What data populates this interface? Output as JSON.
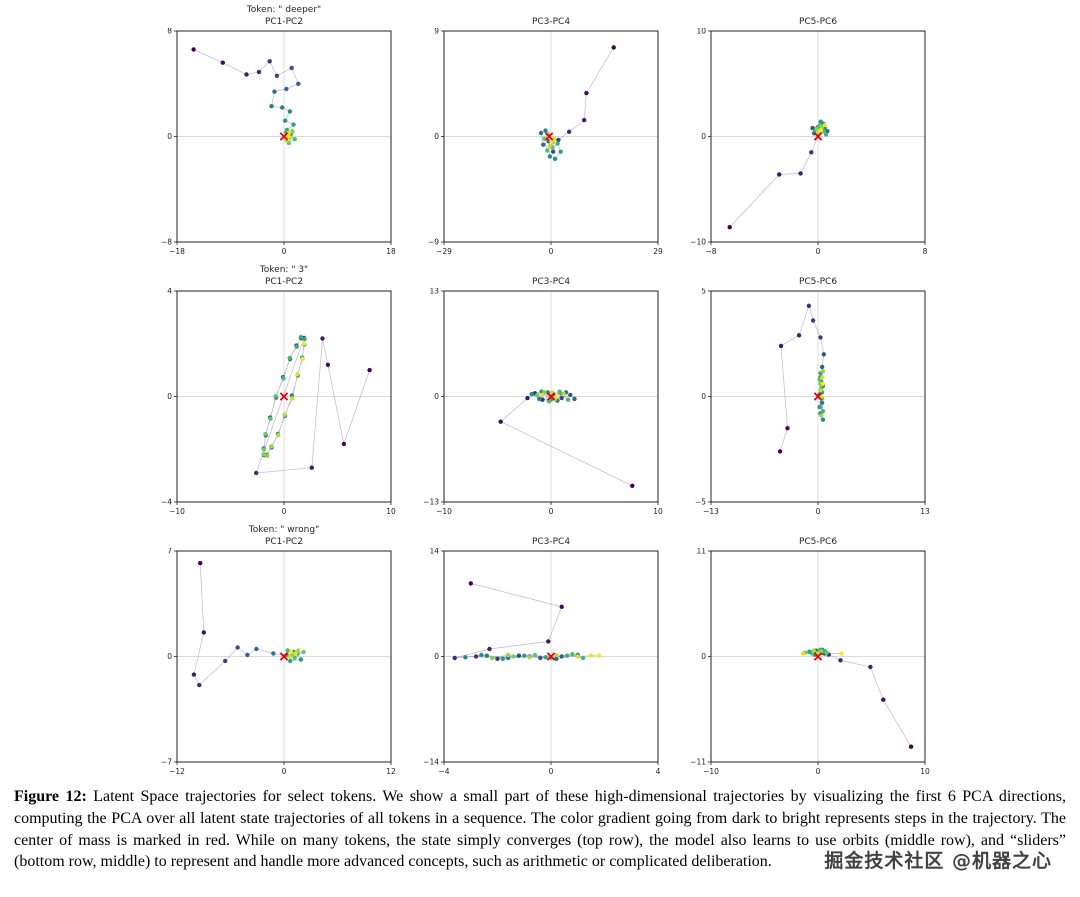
{
  "figure": {
    "caption_label": "Figure 12:",
    "caption_text": " Latent Space trajectories for select tokens.  We show a small part of these high-dimensional trajectories by visualizing the first 6 PCA directions, computing the PCA over all latent state trajectories of all tokens in a sequence.  The color gradient going from dark to bright represents steps in the trajectory.  The center of mass is marked in red.  While on many tokens, the state simply converges (top row), the model also learns to use orbits (middle row), and “sliders” (bottom row, middle) to represent and handle more advanced concepts, such as arithmetic or complicated deliberation."
  },
  "watermark": {
    "text": "掘金技术社区 @机器之心"
  },
  "colors": {
    "center_of_mass": "#e8000b",
    "trajectory_line": "#8a8ac0",
    "crosshair": "#d9d9d9",
    "frame": "#222222",
    "gradient": "viridis"
  },
  "chart_data": [
    {
      "type": "scatter",
      "token": "Token: \" deeper\"",
      "pc_label": "PC1-PC2",
      "xlim": [
        -18,
        18
      ],
      "ylim": [
        -8,
        8
      ],
      "xticks": [
        -18,
        0,
        18
      ],
      "yticks": [
        -8,
        0,
        8
      ],
      "center_of_mass": [
        0,
        0
      ],
      "points": [
        [
          -15.2,
          6.6
        ],
        [
          -10.3,
          5.6
        ],
        [
          -6.3,
          4.7
        ],
        [
          -4.2,
          4.9
        ],
        [
          -2.4,
          5.7
        ],
        [
          -1.2,
          4.6
        ],
        [
          1.3,
          5.2
        ],
        [
          2.4,
          4.0
        ],
        [
          0.4,
          3.6
        ],
        [
          -1.6,
          3.4
        ],
        [
          -2.1,
          2.3
        ],
        [
          -0.3,
          2.2
        ],
        [
          1.0,
          1.9
        ],
        [
          0.2,
          1.2
        ],
        [
          1.6,
          0.9
        ],
        [
          0.5,
          0.5
        ],
        [
          1.2,
          0.2
        ],
        [
          0.3,
          0.3
        ],
        [
          1.8,
          -0.2
        ],
        [
          0.8,
          -0.5
        ],
        [
          1.4,
          0.4
        ],
        [
          0.6,
          0.1
        ],
        [
          1.0,
          -0.1
        ],
        [
          0.4,
          -0.3
        ],
        [
          0.9,
          0.3
        ],
        [
          0.7,
          0.0
        ]
      ]
    },
    {
      "type": "scatter",
      "token": "",
      "pc_label": "PC3-PC4",
      "xlim": [
        -29,
        29
      ],
      "ylim": [
        -9,
        9
      ],
      "xticks": [
        -29,
        0,
        29
      ],
      "yticks": [
        -9,
        0,
        9
      ],
      "center_of_mass": [
        -0.5,
        0.0
      ],
      "points": [
        [
          17.0,
          7.6
        ],
        [
          9.6,
          3.7
        ],
        [
          9.0,
          1.4
        ],
        [
          4.9,
          0.4
        ],
        [
          2.0,
          -0.3
        ],
        [
          0.6,
          -1.3
        ],
        [
          -0.6,
          -0.4
        ],
        [
          -2.1,
          -0.7
        ],
        [
          -2.7,
          0.3
        ],
        [
          -1.5,
          0.5
        ],
        [
          -0.3,
          -1.7
        ],
        [
          1.1,
          -1.9
        ],
        [
          2.6,
          -1.3
        ],
        [
          1.8,
          -0.6
        ],
        [
          0.3,
          -0.9
        ],
        [
          -1.0,
          -1.2
        ],
        [
          -1.8,
          -0.2
        ],
        [
          -0.7,
          0.2
        ],
        [
          0.5,
          -0.5
        ],
        [
          -0.2,
          -0.8
        ],
        [
          0.9,
          -0.2
        ],
        [
          0.1,
          -0.4
        ]
      ]
    },
    {
      "type": "scatter",
      "token": "",
      "pc_label": "PC5-PC6",
      "xlim": [
        -8,
        8
      ],
      "ylim": [
        -10,
        10
      ],
      "xticks": [
        -8,
        0,
        8
      ],
      "yticks": [
        -10,
        0,
        10
      ],
      "center_of_mass": [
        0,
        0
      ],
      "points": [
        [
          -6.6,
          -8.6
        ],
        [
          -2.9,
          -3.6
        ],
        [
          -1.3,
          -3.5
        ],
        [
          -0.5,
          -1.5
        ],
        [
          0.1,
          0.3
        ],
        [
          -0.4,
          0.8
        ],
        [
          0.4,
          1.2
        ],
        [
          0.7,
          0.5
        ],
        [
          0.0,
          0.9
        ],
        [
          -0.3,
          0.3
        ],
        [
          0.5,
          0.8
        ],
        [
          0.2,
          1.4
        ],
        [
          -0.2,
          0.6
        ],
        [
          0.6,
          0.2
        ],
        [
          0.1,
          1.0
        ],
        [
          0.4,
          0.5
        ],
        [
          -0.1,
          0.7
        ],
        [
          0.3,
          0.9
        ],
        [
          0.0,
          0.4
        ],
        [
          0.5,
          1.1
        ],
        [
          0.2,
          0.6
        ]
      ]
    },
    {
      "type": "scatter",
      "token": "Token: \" 3\"",
      "pc_label": "PC1-PC2",
      "xlim": [
        -10,
        10
      ],
      "ylim": [
        -4,
        4
      ],
      "xticks": [
        -10,
        0,
        10
      ],
      "yticks": [
        -4,
        0,
        4
      ],
      "center_of_mass": [
        0,
        0
      ],
      "points": [
        [
          8.0,
          1.0
        ],
        [
          5.6,
          -1.8
        ],
        [
          4.1,
          1.2
        ],
        [
          3.6,
          2.2
        ],
        [
          2.6,
          -2.7
        ],
        [
          -2.6,
          -2.9
        ],
        [
          1.87,
          2.22
        ],
        [
          1.61,
          2.21
        ],
        [
          1.16,
          1.93
        ],
        [
          0.57,
          1.42
        ],
        [
          -0.09,
          0.73
        ],
        [
          -0.74,
          -0.04
        ],
        [
          -1.3,
          -0.8
        ],
        [
          -1.7,
          -1.47
        ],
        [
          -1.9,
          -1.97
        ],
        [
          -1.87,
          -2.22
        ],
        [
          -1.61,
          -2.21
        ],
        [
          -1.16,
          -1.93
        ],
        [
          -0.57,
          -1.42
        ],
        [
          0.09,
          -0.73
        ],
        [
          0.74,
          0.04
        ],
        [
          1.3,
          0.8
        ],
        [
          1.7,
          1.47
        ],
        [
          1.9,
          1.97
        ],
        [
          1.92,
          2.18
        ],
        [
          1.57,
          2.25
        ],
        [
          1.2,
          1.89
        ],
        [
          0.53,
          1.46
        ],
        [
          -0.05,
          0.69
        ],
        [
          -0.78,
          0.0
        ],
        [
          -1.26,
          -0.84
        ],
        [
          -1.74,
          -1.43
        ],
        [
          -1.86,
          -2.01
        ],
        [
          -1.91,
          -2.18
        ],
        [
          -1.57,
          -2.25
        ],
        [
          -1.2,
          -1.89
        ],
        [
          -0.53,
          -1.46
        ],
        [
          0.05,
          -0.69
        ],
        [
          0.78,
          -0.08
        ],
        [
          1.26,
          0.84
        ],
        [
          1.74,
          1.43
        ],
        [
          1.86,
          2.01
        ]
      ]
    },
    {
      "type": "scatter",
      "token": "",
      "pc_label": "PC3-PC4",
      "xlim": [
        -10,
        10
      ],
      "ylim": [
        -13,
        13
      ],
      "xticks": [
        -10,
        0,
        10
      ],
      "yticks": [
        -13,
        0,
        13
      ],
      "center_of_mass": [
        0,
        0
      ],
      "points": [
        [
          7.6,
          -11.0
        ],
        [
          -4.7,
          -3.1
        ],
        [
          -2.2,
          -0.2
        ],
        [
          -1.5,
          0.4
        ],
        [
          -0.8,
          -0.4
        ],
        [
          0.2,
          0.3
        ],
        [
          1.0,
          -0.2
        ],
        [
          1.8,
          0.2
        ],
        [
          2.2,
          -0.3
        ],
        [
          1.4,
          0.5
        ],
        [
          0.6,
          -0.5
        ],
        [
          -0.3,
          0.5
        ],
        [
          -1.1,
          -0.3
        ],
        [
          -1.8,
          0.3
        ],
        [
          -0.9,
          0.6
        ],
        [
          0.0,
          -0.4
        ],
        [
          0.9,
          0.4
        ],
        [
          1.6,
          -0.4
        ],
        [
          0.8,
          0.6
        ],
        [
          -0.2,
          -0.6
        ],
        [
          -1.3,
          0.2
        ],
        [
          -0.6,
          0.5
        ],
        [
          0.4,
          -0.3
        ],
        [
          1.2,
          0.3
        ],
        [
          0.1,
          0.5
        ],
        [
          -0.8,
          0.2
        ],
        [
          0.5,
          0.0
        ]
      ]
    },
    {
      "type": "scatter",
      "token": "",
      "pc_label": "PC5-PC6",
      "xlim": [
        -13,
        13
      ],
      "ylim": [
        -5,
        5
      ],
      "xticks": [
        -13,
        0,
        13
      ],
      "yticks": [
        -5,
        0,
        5
      ],
      "center_of_mass": [
        0,
        0
      ],
      "points": [
        [
          -4.6,
          -2.6
        ],
        [
          -3.7,
          -1.5
        ],
        [
          -4.5,
          2.4
        ],
        [
          -2.3,
          2.9
        ],
        [
          -1.1,
          4.3
        ],
        [
          -0.6,
          3.6
        ],
        [
          0.3,
          2.8
        ],
        [
          0.7,
          2.0
        ],
        [
          0.5,
          1.4
        ],
        [
          0.3,
          0.9
        ],
        [
          0.6,
          0.5
        ],
        [
          0.2,
          0.1
        ],
        [
          0.5,
          -0.3
        ],
        [
          0.3,
          -0.8
        ],
        [
          0.6,
          -1.1
        ],
        [
          0.4,
          0.7
        ],
        [
          0.2,
          -0.5
        ],
        [
          0.5,
          0.2
        ],
        [
          0.3,
          1.1
        ],
        [
          0.6,
          -0.7
        ],
        [
          0.4,
          0.4
        ],
        [
          0.2,
          0.8
        ],
        [
          0.5,
          -0.1
        ],
        [
          0.3,
          0.6
        ],
        [
          0.6,
          1.2
        ],
        [
          0.4,
          -0.9
        ],
        [
          0.3,
          0.3
        ],
        [
          0.5,
          0.9
        ],
        [
          0.4,
          0.0
        ],
        [
          0.6,
          0.6
        ]
      ]
    },
    {
      "type": "scatter",
      "token": "Token: \" wrong\"",
      "pc_label": "PC1-PC2",
      "xlim": [
        -12,
        12
      ],
      "ylim": [
        -7,
        7
      ],
      "xticks": [
        -12,
        0,
        12
      ],
      "yticks": [
        -7,
        0,
        7
      ],
      "center_of_mass": [
        0,
        0
      ],
      "points": [
        [
          -9.4,
          6.2
        ],
        [
          -9.0,
          1.6
        ],
        [
          -10.1,
          -1.2
        ],
        [
          -9.5,
          -1.9
        ],
        [
          -6.6,
          -0.3
        ],
        [
          -5.2,
          0.6
        ],
        [
          -4.1,
          0.1
        ],
        [
          -3.1,
          0.5
        ],
        [
          -1.2,
          0.2
        ],
        [
          0.3,
          0.1
        ],
        [
          1.1,
          0.3
        ],
        [
          1.9,
          -0.2
        ],
        [
          0.7,
          -0.3
        ],
        [
          1.5,
          0.2
        ],
        [
          0.4,
          0.4
        ],
        [
          1.2,
          -0.1
        ],
        [
          2.2,
          0.3
        ],
        [
          0.9,
          0.1
        ],
        [
          1.6,
          0.4
        ],
        [
          0.6,
          0.0
        ],
        [
          1.3,
          0.2
        ],
        [
          0.8,
          0.3
        ]
      ]
    },
    {
      "type": "scatter",
      "token": "",
      "pc_label": "PC3-PC4",
      "xlim": [
        -4,
        4
      ],
      "ylim": [
        -14,
        14
      ],
      "xticks": [
        -4,
        0,
        4
      ],
      "yticks": [
        -14,
        0,
        14
      ],
      "center_of_mass": [
        0,
        0
      ],
      "points": [
        [
          -3.0,
          9.7
        ],
        [
          0.4,
          6.6
        ],
        [
          -0.1,
          2.0
        ],
        [
          -2.3,
          1.0
        ],
        [
          -3.6,
          -0.2
        ],
        [
          -2.8,
          0.0
        ],
        [
          -2.0,
          -0.3
        ],
        [
          -1.2,
          0.1
        ],
        [
          -0.4,
          -0.2
        ],
        [
          0.4,
          0.0
        ],
        [
          1.0,
          0.2
        ],
        [
          0.2,
          -0.3
        ],
        [
          -0.8,
          0.0
        ],
        [
          -1.6,
          -0.2
        ],
        [
          -2.4,
          0.1
        ],
        [
          -3.2,
          -0.1
        ],
        [
          -2.6,
          0.2
        ],
        [
          -1.8,
          -0.3
        ],
        [
          -1.0,
          0.1
        ],
        [
          -0.2,
          -0.1
        ],
        [
          0.6,
          0.1
        ],
        [
          1.2,
          -0.2
        ],
        [
          0.8,
          0.3
        ],
        [
          0.0,
          -0.2
        ],
        [
          -0.6,
          0.2
        ],
        [
          -1.4,
          0.0
        ],
        [
          -2.2,
          -0.2
        ],
        [
          -1.6,
          0.2
        ],
        [
          -0.8,
          -0.1
        ],
        [
          0.2,
          0.2
        ],
        [
          1.0,
          0.0
        ],
        [
          1.5,
          0.1
        ],
        [
          1.8,
          0.1
        ]
      ]
    },
    {
      "type": "scatter",
      "token": "",
      "pc_label": "PC5-PC6",
      "xlim": [
        -10,
        10
      ],
      "ylim": [
        -11,
        11
      ],
      "xticks": [
        -10,
        0,
        10
      ],
      "yticks": [
        -11,
        0,
        11
      ],
      "center_of_mass": [
        0,
        0
      ],
      "points": [
        [
          8.7,
          -9.4
        ],
        [
          6.1,
          -4.5
        ],
        [
          4.9,
          -1.1
        ],
        [
          2.1,
          -0.4
        ],
        [
          1.0,
          0.2
        ],
        [
          0.3,
          0.4
        ],
        [
          -0.2,
          0.6
        ],
        [
          0.6,
          0.3
        ],
        [
          0.0,
          0.5
        ],
        [
          -0.6,
          0.4
        ],
        [
          0.4,
          0.7
        ],
        [
          -0.3,
          0.2
        ],
        [
          0.7,
          0.5
        ],
        [
          0.1,
          0.3
        ],
        [
          -0.8,
          0.5
        ],
        [
          0.5,
          0.6
        ],
        [
          -0.1,
          0.4
        ],
        [
          0.2,
          0.7
        ],
        [
          -0.5,
          0.3
        ],
        [
          0.8,
          0.4
        ],
        [
          -1.2,
          0.4
        ],
        [
          0.3,
          0.5
        ],
        [
          -0.4,
          0.6
        ],
        [
          0.0,
          0.3
        ],
        [
          -1.4,
          0.3
        ],
        [
          2.2,
          0.3
        ]
      ]
    }
  ]
}
